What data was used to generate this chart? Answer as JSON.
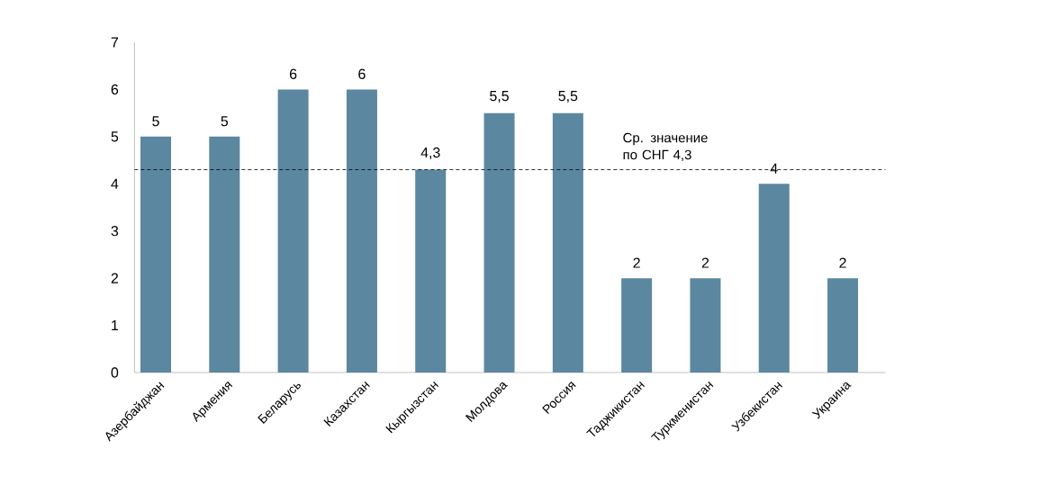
{
  "chart_data": {
    "type": "bar",
    "categories": [
      "Азербайджан",
      "Армения",
      "Беларусь",
      "Казахстан",
      "Кыргызстан",
      "Молдова",
      "Россия",
      "Таджикистан",
      "Туркменистан",
      "Узбекистан",
      "Украина"
    ],
    "values": [
      5,
      5,
      6,
      6,
      4.3,
      5.5,
      5.5,
      2,
      2,
      4,
      2
    ],
    "value_labels": [
      "5",
      "5",
      "6",
      "6",
      "4,3",
      "5,5",
      "5,5",
      "2",
      "2",
      "4",
      "2"
    ],
    "color": "#5b87a0",
    "ylim": [
      0,
      7
    ],
    "yticks": [
      0,
      1,
      2,
      3,
      4,
      5,
      6,
      7
    ],
    "ref_lines": [
      {
        "axis": "y",
        "value": 4.3,
        "label": "Ср. значение по СНГ 4,3",
        "color": "#000000",
        "line_style": "dashed"
      }
    ]
  }
}
